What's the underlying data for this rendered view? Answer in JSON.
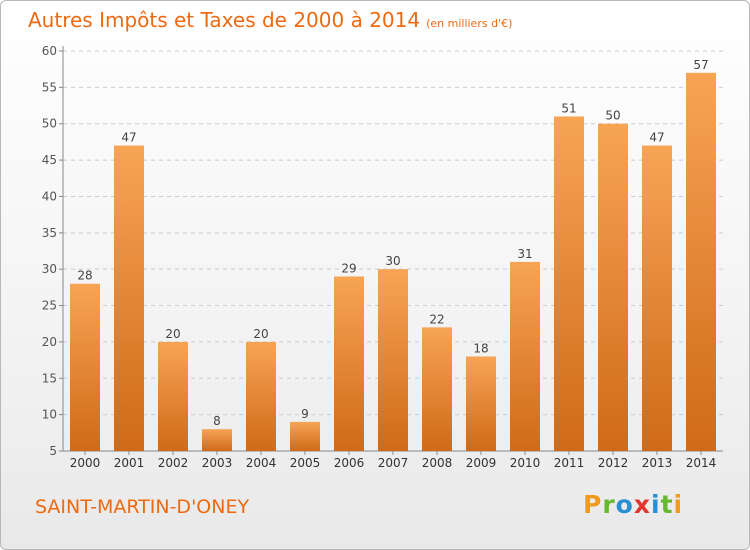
{
  "header": {
    "title": "Autres Impôts et Taxes de 2000 à 2014",
    "subtitle": "(en milliers d'€)"
  },
  "footer": {
    "commune": "SAINT-MARTIN-D'ONEY",
    "logo_letters": [
      "P",
      "r",
      "o",
      "x",
      "i",
      "t",
      "i"
    ],
    "logo_colors": [
      "#f29a1e",
      "#66b82e",
      "#2a8fd0",
      "#e3342f",
      "#2a8fd0",
      "#66b82e",
      "#f29a1e"
    ]
  },
  "colors": {
    "title": "#ee6a10",
    "bar_top": "#f7a455",
    "bar_bottom": "#cf6a18",
    "grid": "#cccccc"
  },
  "chart_data": {
    "type": "bar",
    "title": "Autres Impôts et Taxes de 2000 à 2014",
    "subtitle": "(en milliers d'€)",
    "categories": [
      "2000",
      "2001",
      "2002",
      "2003",
      "2004",
      "2005",
      "2006",
      "2007",
      "2008",
      "2009",
      "2010",
      "2011",
      "2012",
      "2013",
      "2014"
    ],
    "values": [
      28,
      47,
      20,
      8,
      20,
      9,
      29,
      30,
      22,
      18,
      31,
      51,
      50,
      47,
      57
    ],
    "ylim": [
      5,
      60
    ],
    "yticks": [
      5,
      10,
      15,
      20,
      25,
      30,
      35,
      40,
      45,
      50,
      55,
      60
    ],
    "grid": true,
    "data_labels": true
  }
}
